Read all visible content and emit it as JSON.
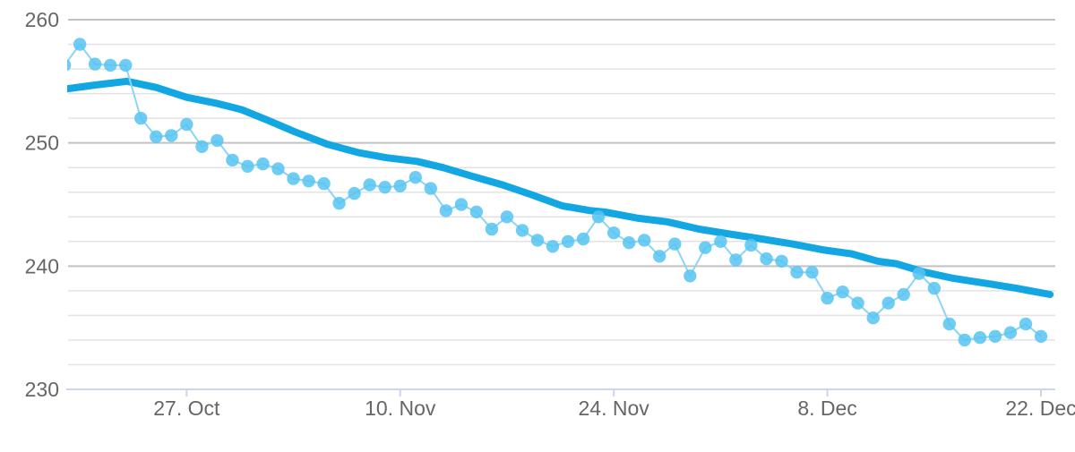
{
  "chart_data": {
    "type": "line",
    "title": "",
    "legend": "none",
    "background": "#ffffff",
    "label_color": "#666666",
    "axis_line_color": "#ccd6eb",
    "grid": {
      "minor_color": "#e3e3e3",
      "major_color": "#c2c2c2"
    },
    "x_axis": {
      "unit": "date",
      "range_days": [
        0.23,
        64.94
      ],
      "tick_days": [
        8,
        22,
        36,
        50,
        64
      ],
      "tick_labels": [
        "27. Oct",
        "10. Nov",
        "24. Nov",
        "8. Dec",
        "22. Dec"
      ]
    },
    "y_axis": {
      "min": 230,
      "max": 260,
      "major_step": 10,
      "minor_step": 2,
      "tick_values": [
        230,
        240,
        250,
        260
      ],
      "tick_labels": [
        "230",
        "240",
        "250",
        "260"
      ]
    },
    "series": [
      {
        "name": "smoothed-trend",
        "type": "line",
        "color": "#12a7e3",
        "stroke_width": 8,
        "points": [
          [
            0.2,
            254.4
          ],
          [
            2,
            254.7
          ],
          [
            4.1,
            255.0
          ],
          [
            6,
            254.5
          ],
          [
            8,
            253.7
          ],
          [
            10,
            253.2
          ],
          [
            11.6,
            252.7
          ],
          [
            13.4,
            251.8
          ],
          [
            15.1,
            250.9
          ],
          [
            17.2,
            249.9
          ],
          [
            19.3,
            249.2
          ],
          [
            21.1,
            248.8
          ],
          [
            23.1,
            248.5
          ],
          [
            24.8,
            248.0
          ],
          [
            26.7,
            247.3
          ],
          [
            28.7,
            246.6
          ],
          [
            30.6,
            245.8
          ],
          [
            32.6,
            244.9
          ],
          [
            34.5,
            244.5
          ],
          [
            35.4,
            244.4
          ],
          [
            37.5,
            243.9
          ],
          [
            39.5,
            243.6
          ],
          [
            41.6,
            243.0
          ],
          [
            43.6,
            242.6
          ],
          [
            45.7,
            242.2
          ],
          [
            47.7,
            241.8
          ],
          [
            49.8,
            241.3
          ],
          [
            51.6,
            241.0
          ],
          [
            53.3,
            240.4
          ],
          [
            54.5,
            240.2
          ],
          [
            56.4,
            239.5
          ],
          [
            58.3,
            239.0
          ],
          [
            60.4,
            238.6
          ],
          [
            62.4,
            238.2
          ],
          [
            64.6,
            237.7
          ]
        ]
      },
      {
        "name": "daily-values",
        "type": "line-markers",
        "marker_color": "#56c4f1",
        "marker_opacity": 0.85,
        "marker_radius": 7.2,
        "line_color": "#8bd4f6",
        "line_width": 2,
        "day_start": 0,
        "values": [
          256.3,
          258.0,
          256.4,
          256.3,
          256.3,
          252.0,
          250.5,
          250.6,
          251.5,
          249.7,
          250.2,
          248.6,
          248.1,
          248.3,
          247.9,
          247.1,
          246.9,
          246.7,
          245.1,
          245.9,
          246.6,
          246.4,
          246.5,
          247.2,
          246.3,
          244.5,
          245.0,
          244.4,
          243.0,
          244.0,
          242.9,
          242.1,
          241.6,
          242.0,
          242.2,
          244.0,
          242.7,
          241.9,
          242.1,
          240.8,
          241.8,
          239.2,
          241.5,
          242.0,
          240.5,
          241.7,
          240.6,
          240.4,
          239.5,
          239.5,
          237.4,
          237.9,
          237.0,
          235.8,
          237.0,
          237.7,
          239.4,
          238.2,
          235.3,
          234.0,
          234.2,
          234.3,
          234.6,
          235.3,
          234.3
        ]
      }
    ]
  }
}
